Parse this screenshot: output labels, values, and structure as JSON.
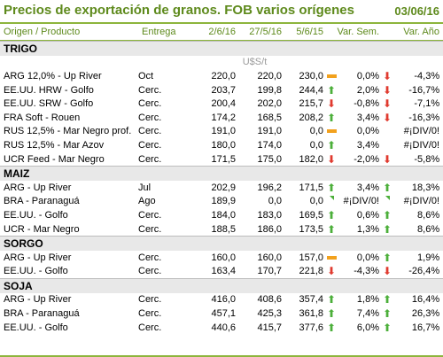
{
  "title": "Precios de exportación de granos. FOB varios orígenes",
  "date": "03/06/16",
  "headers": {
    "product": "Origen / Producto",
    "delivery": "Entrega",
    "d1": "2/6/16",
    "d2": "27/5/16",
    "d3": "5/6/15",
    "var_sem": "Var. Sem.",
    "var_ano": "Var. Año"
  },
  "unit": "U$S/t",
  "sections": [
    {
      "name": "TRIGO",
      "rows": [
        {
          "product": "ARG 12,0% - Up River",
          "delivery": "Oct",
          "d1": "220,0",
          "d2": "220,0",
          "d3": "230,0",
          "icon1": "flat-icon",
          "var_sem": "0,0%",
          "icon2": "arrow-down-icon",
          "var_ano": "-4,3%"
        },
        {
          "product": "EE.UU. HRW - Golfo",
          "delivery": "Cerc.",
          "d1": "203,7",
          "d2": "199,8",
          "d3": "244,4",
          "icon1": "arrow-up-icon",
          "var_sem": "2,0%",
          "icon2": "arrow-down-icon",
          "var_ano": "-16,7%"
        },
        {
          "product": "EE.UU. SRW - Golfo",
          "delivery": "Cerc.",
          "d1": "200,4",
          "d2": "202,0",
          "d3": "215,7",
          "icon1": "arrow-down-icon",
          "var_sem": "-0,8%",
          "icon2": "arrow-down-icon",
          "var_ano": "-7,1%"
        },
        {
          "product": "FRA Soft - Rouen",
          "delivery": "Cerc.",
          "d1": "174,2",
          "d2": "168,5",
          "d3": "208,2",
          "icon1": "arrow-up-icon",
          "var_sem": "3,4%",
          "icon2": "arrow-down-icon",
          "var_ano": "-16,3%"
        },
        {
          "product": "RUS 12,5% - Mar Negro prof.",
          "delivery": "Cerc.",
          "d1": "191,0",
          "d2": "191,0",
          "d3": "0,0",
          "icon1": "flat-icon",
          "var_sem": "0,0%",
          "icon2": "",
          "var_ano": "#¡DIV/0!"
        },
        {
          "product": "RUS 12,5% - Mar Azov",
          "delivery": "Cerc.",
          "d1": "180,0",
          "d2": "174,0",
          "d3": "0,0",
          "icon1": "arrow-up-icon",
          "var_sem": "3,4%",
          "icon2": "",
          "var_ano": "#¡DIV/0!"
        },
        {
          "product": "UCR Feed - Mar Negro",
          "delivery": "Cerc.",
          "d1": "171,5",
          "d2": "175,0",
          "d3": "182,0",
          "icon1": "arrow-down-icon",
          "var_sem": "-2,0%",
          "icon2": "arrow-down-icon",
          "var_ano": "-5,8%"
        }
      ]
    },
    {
      "name": "MAIZ",
      "rows": [
        {
          "product": "ARG - Up River",
          "delivery": "Jul",
          "d1": "202,9",
          "d2": "196,2",
          "d3": "171,5",
          "icon1": "arrow-up-icon",
          "var_sem": "3,4%",
          "icon2": "arrow-up-icon",
          "var_ano": "18,3%"
        },
        {
          "product": "BRA - Paranaguá",
          "delivery": "Ago",
          "d1": "189,9",
          "d2": "0,0",
          "d3": "0,0",
          "icon1": "corner-mark-icon",
          "var_sem": "#¡DIV/0!",
          "icon2": "corner-mark-icon",
          "var_ano": "#¡DIV/0!"
        },
        {
          "product": "EE.UU. - Golfo",
          "delivery": "Cerc.",
          "d1": "184,0",
          "d2": "183,0",
          "d3": "169,5",
          "icon1": "arrow-up-icon",
          "var_sem": "0,6%",
          "icon2": "arrow-up-icon",
          "var_ano": "8,6%"
        },
        {
          "product": "UCR - Mar Negro",
          "delivery": "Cerc.",
          "d1": "188,5",
          "d2": "186,0",
          "d3": "173,5",
          "icon1": "arrow-up-icon",
          "var_sem": "1,3%",
          "icon2": "arrow-up-icon",
          "var_ano": "8,6%"
        }
      ]
    },
    {
      "name": "SORGO",
      "rows": [
        {
          "product": "ARG - Up River",
          "delivery": "Cerc.",
          "d1": "160,0",
          "d2": "160,0",
          "d3": "157,0",
          "icon1": "flat-icon",
          "var_sem": "0,0%",
          "icon2": "arrow-up-icon",
          "var_ano": "1,9%"
        },
        {
          "product": "EE.UU. - Golfo",
          "delivery": "Cerc.",
          "d1": "163,4",
          "d2": "170,7",
          "d3": "221,8",
          "icon1": "arrow-down-icon",
          "var_sem": "-4,3%",
          "icon2": "arrow-down-icon",
          "var_ano": "-26,4%"
        }
      ]
    },
    {
      "name": "SOJA",
      "rows": [
        {
          "product": "ARG - Up River",
          "delivery": "Cerc.",
          "d1": "416,0",
          "d2": "408,6",
          "d3": "357,4",
          "icon1": "arrow-up-icon",
          "var_sem": "1,8%",
          "icon2": "arrow-up-icon",
          "var_ano": "16,4%"
        },
        {
          "product": "BRA - Paranaguá",
          "delivery": "Cerc.",
          "d1": "457,1",
          "d2": "425,3",
          "d3": "361,8",
          "icon1": "arrow-up-icon",
          "var_sem": "7,4%",
          "icon2": "arrow-up-icon",
          "var_ano": "26,3%"
        },
        {
          "product": "EE.UU. - Golfo",
          "delivery": "Cerc.",
          "d1": "440,6",
          "d2": "415,7",
          "d3": "377,6",
          "icon1": "arrow-up-icon",
          "var_sem": "6,0%",
          "icon2": "arrow-up-icon",
          "var_ano": "16,7%"
        }
      ]
    }
  ]
}
